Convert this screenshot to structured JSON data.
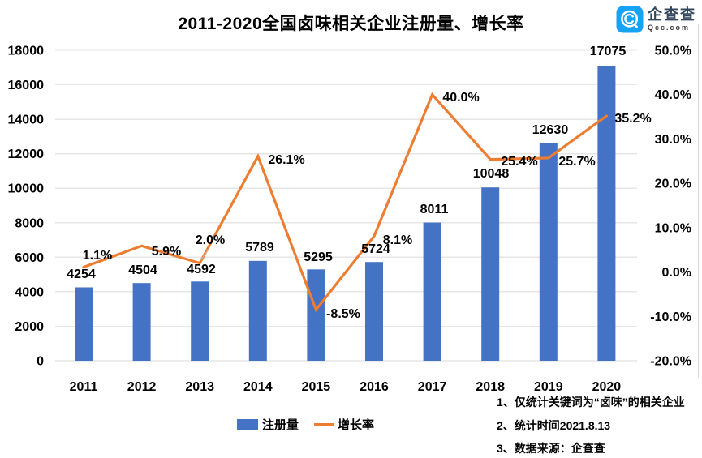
{
  "logo": {
    "name": "企查查",
    "domain": "Qcc.com",
    "color": "#16a3f7"
  },
  "legend": {
    "items": [
      {
        "label": "注册量",
        "type": "bar",
        "color": "#4472C4"
      },
      {
        "label": "增长率",
        "type": "line",
        "color": "#ED7D31"
      }
    ]
  },
  "notes": [
    "1、仅统计关键词为“卤味”的相关企业",
    "2、统计时间2021.8.13",
    "3、数据来源：企查查"
  ],
  "colors": {
    "bar": "#4472C4",
    "line": "#ED7D31",
    "grid": "#E6E6E6",
    "axis": "#D9D9D9",
    "text": "#000000"
  },
  "chart_data": {
    "type": "bar",
    "subtype": "combo bar+line, dual axis",
    "title": "2011-2020全国卤味相关企业注册量、增长率",
    "categories": [
      "2011",
      "2012",
      "2013",
      "2014",
      "2015",
      "2016",
      "2017",
      "2018",
      "2019",
      "2020"
    ],
    "series": [
      {
        "name": "注册量",
        "type": "bar",
        "axis": "left",
        "color": "#4472C4",
        "values": [
          4254,
          4504,
          4592,
          5789,
          5295,
          5724,
          8011,
          10048,
          12630,
          17075
        ],
        "labels": [
          "4254",
          "4504",
          "4592",
          "5789",
          "5295",
          "5724",
          "8011",
          "10048",
          "12630",
          "17075"
        ]
      },
      {
        "name": "增长率",
        "type": "line",
        "axis": "right",
        "color": "#ED7D31",
        "values": [
          1.1,
          5.9,
          2.0,
          26.1,
          -8.5,
          8.1,
          40.0,
          25.4,
          25.7,
          35.2
        ],
        "labels": [
          "1.1%",
          "5.9%",
          "2.0%",
          "26.1%",
          "-8.5%",
          "8.1%",
          "40.0%",
          "25.4%",
          "25.7%",
          "35.2%"
        ]
      }
    ],
    "left_axis": {
      "min": 0,
      "max": 18000,
      "step": 2000,
      "tick_labels": [
        "18000",
        "16000",
        "14000",
        "12000",
        "10000",
        "8000",
        "6000",
        "4000",
        "2000",
        "0"
      ]
    },
    "right_axis": {
      "min": -20,
      "max": 50,
      "step": 10,
      "tick_labels": [
        "50.0%",
        "40.0%",
        "30.0%",
        "20.0%",
        "10.0%",
        "0.0%",
        "-10.0%",
        "-20.0%"
      ]
    },
    "grid": true,
    "legend_position": "bottom"
  }
}
